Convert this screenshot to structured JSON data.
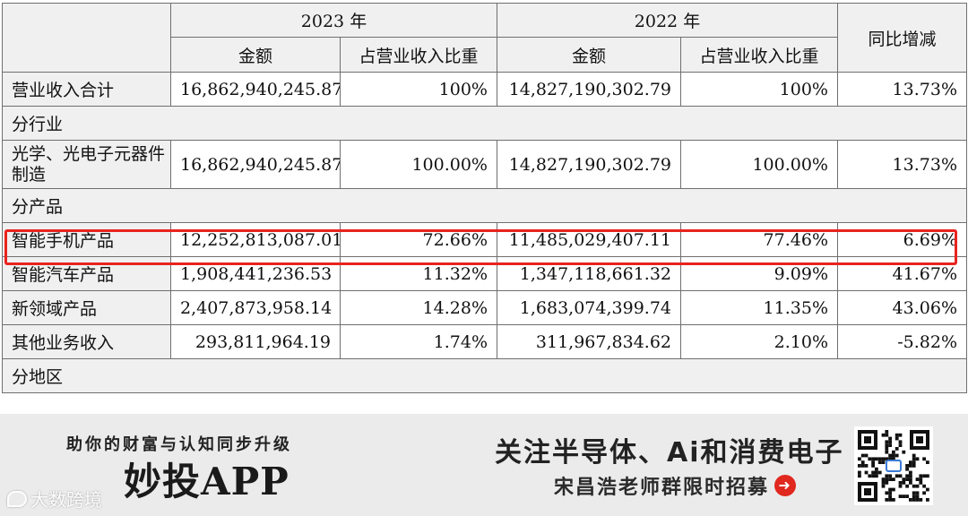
{
  "table": {
    "header": {
      "year_2023": "2023 年",
      "year_2022": "2022 年",
      "yoy": "同比增减",
      "amount": "金额",
      "ratio": "占营业收入比重"
    },
    "rows": [
      {
        "label": "营业收入合计",
        "a2023": "16,862,940,245.87",
        "r2023": "100%",
        "a2022": "14,827,190,302.79",
        "r2022": "100%",
        "yoy": "13.73%"
      },
      {
        "section": "分行业"
      },
      {
        "label": "光学、光电子元器件制造",
        "a2023": "16,862,940,245.87",
        "r2023": "100.00%",
        "a2022": "14,827,190,302.79",
        "r2022": "100.00%",
        "yoy": "13.73%"
      },
      {
        "section": "分产品"
      },
      {
        "label": "智能手机产品",
        "a2023": "12,252,813,087.01",
        "r2023": "72.66%",
        "a2022": "11,485,029,407.11",
        "r2022": "77.46%",
        "yoy": "6.69%"
      },
      {
        "label": "智能汽车产品",
        "a2023": "1,908,441,236.53",
        "r2023": "11.32%",
        "a2022": "1,347,118,661.32",
        "r2022": "9.09%",
        "yoy": "41.67%"
      },
      {
        "label": "新领域产品",
        "a2023": "2,407,873,958.14",
        "r2023": "14.28%",
        "a2022": "1,683,074,399.74",
        "r2022": "11.35%",
        "yoy": "43.06%"
      },
      {
        "label": "其他业务收入",
        "a2023": "293,811,964.19",
        "r2023": "1.74%",
        "a2022": "311,967,834.62",
        "r2022": "2.10%",
        "yoy": "-5.82%"
      },
      {
        "section": "分地区"
      }
    ]
  },
  "banner": {
    "tagline": "助你的财富与认知同步升级",
    "app_name": "妙投APP",
    "headline": "关注半导体、Ai和消费电子",
    "recruit": "宋昌浩老师群限时招募",
    "watermark": "大数跨境",
    "highlight_color": "#e8231e",
    "icons": [
      "arrow-right-icon",
      "qr-code-icon",
      "chat-bubble-icon"
    ]
  }
}
